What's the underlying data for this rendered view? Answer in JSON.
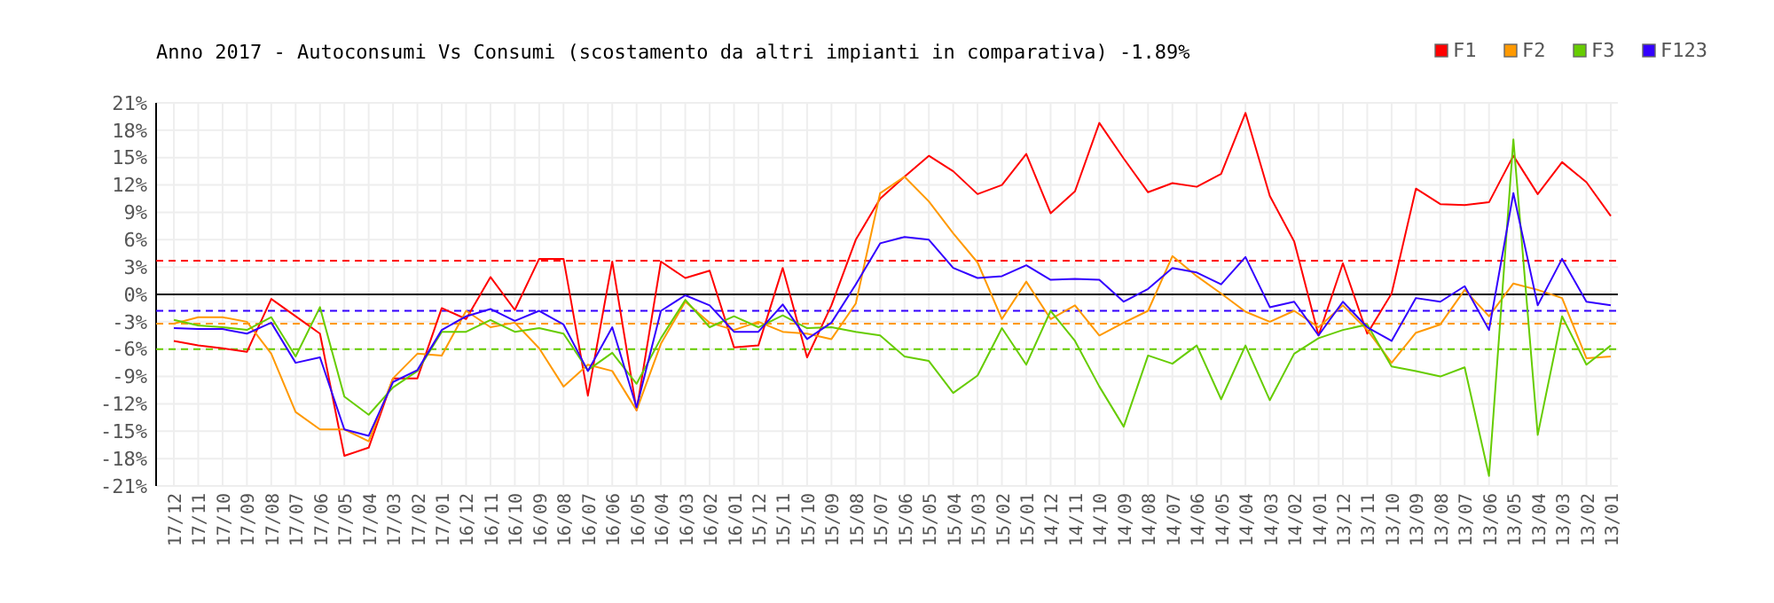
{
  "chart_data": {
    "type": "line",
    "title": "Anno 2017 - Autoconsumi Vs Consumi (scostamento da altri impianti in comparativa) -1.89%",
    "categories": [
      "17/12",
      "17/11",
      "17/10",
      "17/09",
      "17/08",
      "17/07",
      "17/06",
      "17/05",
      "17/04",
      "17/03",
      "17/02",
      "17/01",
      "16/12",
      "16/11",
      "16/10",
      "16/09",
      "16/08",
      "16/07",
      "16/06",
      "16/05",
      "16/04",
      "16/03",
      "16/02",
      "16/01",
      "15/12",
      "15/11",
      "15/10",
      "15/09",
      "15/08",
      "15/07",
      "15/06",
      "15/05",
      "15/04",
      "15/03",
      "15/02",
      "15/01",
      "14/12",
      "14/11",
      "14/10",
      "14/09",
      "14/08",
      "14/07",
      "14/06",
      "14/05",
      "14/04",
      "14/03",
      "14/02",
      "14/01",
      "13/12",
      "13/11",
      "13/10",
      "13/09",
      "13/08",
      "13/07",
      "13/06",
      "13/05",
      "13/04",
      "13/03",
      "13/02",
      "13/01"
    ],
    "series": [
      {
        "name": "F1",
        "color": "#ff0000",
        "values": [
          -5.1,
          -5.6,
          -5.9,
          -6.3,
          -0.5,
          -2.4,
          -4.3,
          -17.7,
          -16.8,
          -9.2,
          -9.2,
          -1.5,
          -2.7,
          1.9,
          -1.7,
          3.9,
          3.9,
          -11.1,
          3.6,
          -12.7,
          3.6,
          1.8,
          2.6,
          -5.8,
          -5.6,
          2.9,
          -6.9,
          -1.2,
          6.0,
          10.5,
          12.9,
          15.2,
          13.5,
          11.0,
          12.0,
          15.4,
          8.9,
          11.3,
          18.8,
          14.9,
          11.2,
          12.2,
          11.8,
          13.2,
          19.9,
          10.8,
          5.8,
          -4.5,
          3.4,
          -4.3,
          0.1,
          11.6,
          9.9,
          9.8,
          10.1,
          15.2,
          11.0,
          14.5,
          12.3,
          8.6
        ]
      },
      {
        "name": "F2",
        "color": "#ff9900",
        "values": [
          -3.2,
          -2.5,
          -2.5,
          -3.0,
          -6.5,
          -12.9,
          -14.8,
          -14.8,
          -16.1,
          -9.2,
          -6.5,
          -6.7,
          -1.8,
          -3.6,
          -3.1,
          -5.9,
          -10.1,
          -7.7,
          -8.4,
          -12.7,
          -5.4,
          -0.8,
          -3.1,
          -3.9,
          -3.0,
          -4.1,
          -4.3,
          -4.9,
          -1.0,
          11.1,
          12.9,
          10.2,
          6.7,
          3.5,
          -2.7,
          1.4,
          -2.7,
          -1.2,
          -4.5,
          -3.1,
          -1.8,
          4.2,
          2.0,
          0.1,
          -1.9,
          -3.0,
          -1.8,
          -3.6,
          -1.2,
          -3.9,
          -7.5,
          -4.2,
          -3.3,
          0.5,
          -2.4,
          1.2,
          0.5,
          -0.4,
          -7.0,
          -6.8
        ]
      },
      {
        "name": "F3",
        "color": "#66cc00",
        "values": [
          -2.8,
          -3.4,
          -3.6,
          -3.9,
          -2.5,
          -6.8,
          -1.4,
          -11.2,
          -13.2,
          -10.2,
          -8.4,
          -4.1,
          -4.1,
          -2.8,
          -4.1,
          -3.7,
          -4.3,
          -8.3,
          -6.4,
          -9.8,
          -4.8,
          -0.6,
          -3.6,
          -2.4,
          -3.6,
          -2.3,
          -3.7,
          -3.6,
          -4.1,
          -4.5,
          -6.8,
          -7.3,
          -10.8,
          -8.9,
          -3.7,
          -7.7,
          -1.8,
          -5.1,
          -10.1,
          -14.5,
          -6.7,
          -7.6,
          -5.6,
          -11.5,
          -5.6,
          -11.6,
          -6.5,
          -4.8,
          -3.9,
          -3.3,
          -7.9,
          -8.4,
          -9.0,
          -8.0,
          -19.9,
          17.0,
          -15.4,
          -2.4,
          -7.7,
          -5.6
        ]
      },
      {
        "name": "F123",
        "color": "#3300ff",
        "values": [
          -3.7,
          -3.8,
          -3.8,
          -4.3,
          -3.1,
          -7.5,
          -6.9,
          -14.8,
          -15.5,
          -9.6,
          -8.3,
          -3.9,
          -2.4,
          -1.6,
          -2.9,
          -1.8,
          -3.3,
          -8.4,
          -3.6,
          -12.4,
          -1.8,
          -0.1,
          -1.2,
          -4.1,
          -4.1,
          -1.1,
          -4.9,
          -3.1,
          1.1,
          5.6,
          6.3,
          6.0,
          2.9,
          1.8,
          2.0,
          3.2,
          1.6,
          1.7,
          1.6,
          -0.8,
          0.6,
          2.9,
          2.4,
          1.1,
          4.1,
          -1.4,
          -0.8,
          -4.5,
          -0.8,
          -3.6,
          -5.1,
          -0.4,
          -0.8,
          0.9,
          -3.9,
          11.1,
          -1.2,
          3.9,
          -0.8,
          -1.2
        ]
      }
    ],
    "ylim": [
      -21,
      21
    ],
    "yticks": [
      {
        "value": -21,
        "label": "-21%"
      },
      {
        "value": -18,
        "label": "-18%"
      },
      {
        "value": -15,
        "label": "-15%"
      },
      {
        "value": -12,
        "label": "-12%"
      },
      {
        "value": -9,
        "label": "-9%"
      },
      {
        "value": -6,
        "label": "-6%"
      },
      {
        "value": -3,
        "label": "-3%"
      },
      {
        "value": 0,
        "label": "0%"
      },
      {
        "value": 3,
        "label": "3%"
      },
      {
        "value": 6,
        "label": "6%"
      },
      {
        "value": 9,
        "label": "9%"
      },
      {
        "value": 12,
        "label": "12%"
      },
      {
        "value": 15,
        "label": "15%"
      },
      {
        "value": 18,
        "label": "18%"
      },
      {
        "value": 21,
        "label": "21%"
      }
    ],
    "ref_lines": [
      {
        "axis": "y",
        "value": 0,
        "color": "#000000",
        "line_style": "solid"
      },
      {
        "axis": "y",
        "value": 3.7,
        "color": "#ff0000",
        "line_style": "dashed"
      },
      {
        "axis": "y",
        "value": -1.8,
        "color": "#3300ff",
        "line_style": "dashed"
      },
      {
        "axis": "y",
        "value": -3.2,
        "color": "#ff9900",
        "line_style": "dashed"
      },
      {
        "axis": "y",
        "value": -6.0,
        "color": "#66cc00",
        "line_style": "dashed"
      }
    ],
    "grid": true,
    "legend": "top right",
    "marker": "none",
    "line_style": "solid"
  }
}
